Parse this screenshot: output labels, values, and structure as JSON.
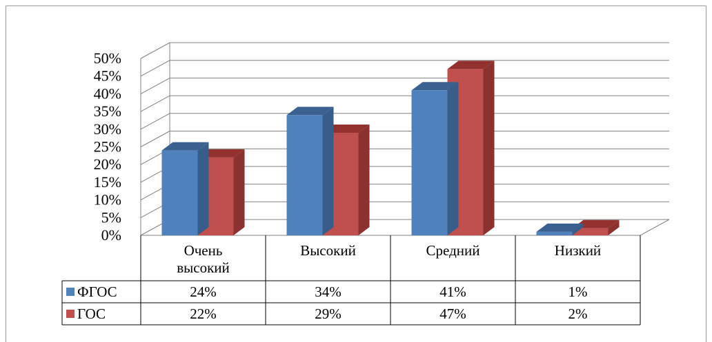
{
  "chart_data": {
    "type": "bar",
    "categories": [
      [
        "Очень",
        "высокий"
      ],
      [
        "Высокий"
      ],
      [
        "Средний"
      ],
      [
        "Низкий"
      ]
    ],
    "series": [
      {
        "name": "ФГОС",
        "values": [
          24,
          34,
          41,
          1
        ],
        "labels": [
          "24%",
          "34%",
          "41%",
          "1%"
        ]
      },
      {
        "name": "ГОС",
        "values": [
          22,
          29,
          47,
          2
        ],
        "labels": [
          "22%",
          "29%",
          "47%",
          "2%"
        ]
      }
    ],
    "ylim": [
      0,
      50
    ],
    "yticks": [
      "0%",
      "5%",
      "10%",
      "15%",
      "20%",
      "25%",
      "30%",
      "35%",
      "40%",
      "45%",
      "50%"
    ],
    "grid": true,
    "legend": "data-table",
    "colors": {
      "series1_front": "#4f81bd",
      "series1_side": "#385d8a",
      "series1_top": "#3a6190",
      "series2_front": "#c0504d",
      "series2_side": "#8b3230",
      "series2_top": "#93312e",
      "grid": "#808080"
    }
  }
}
